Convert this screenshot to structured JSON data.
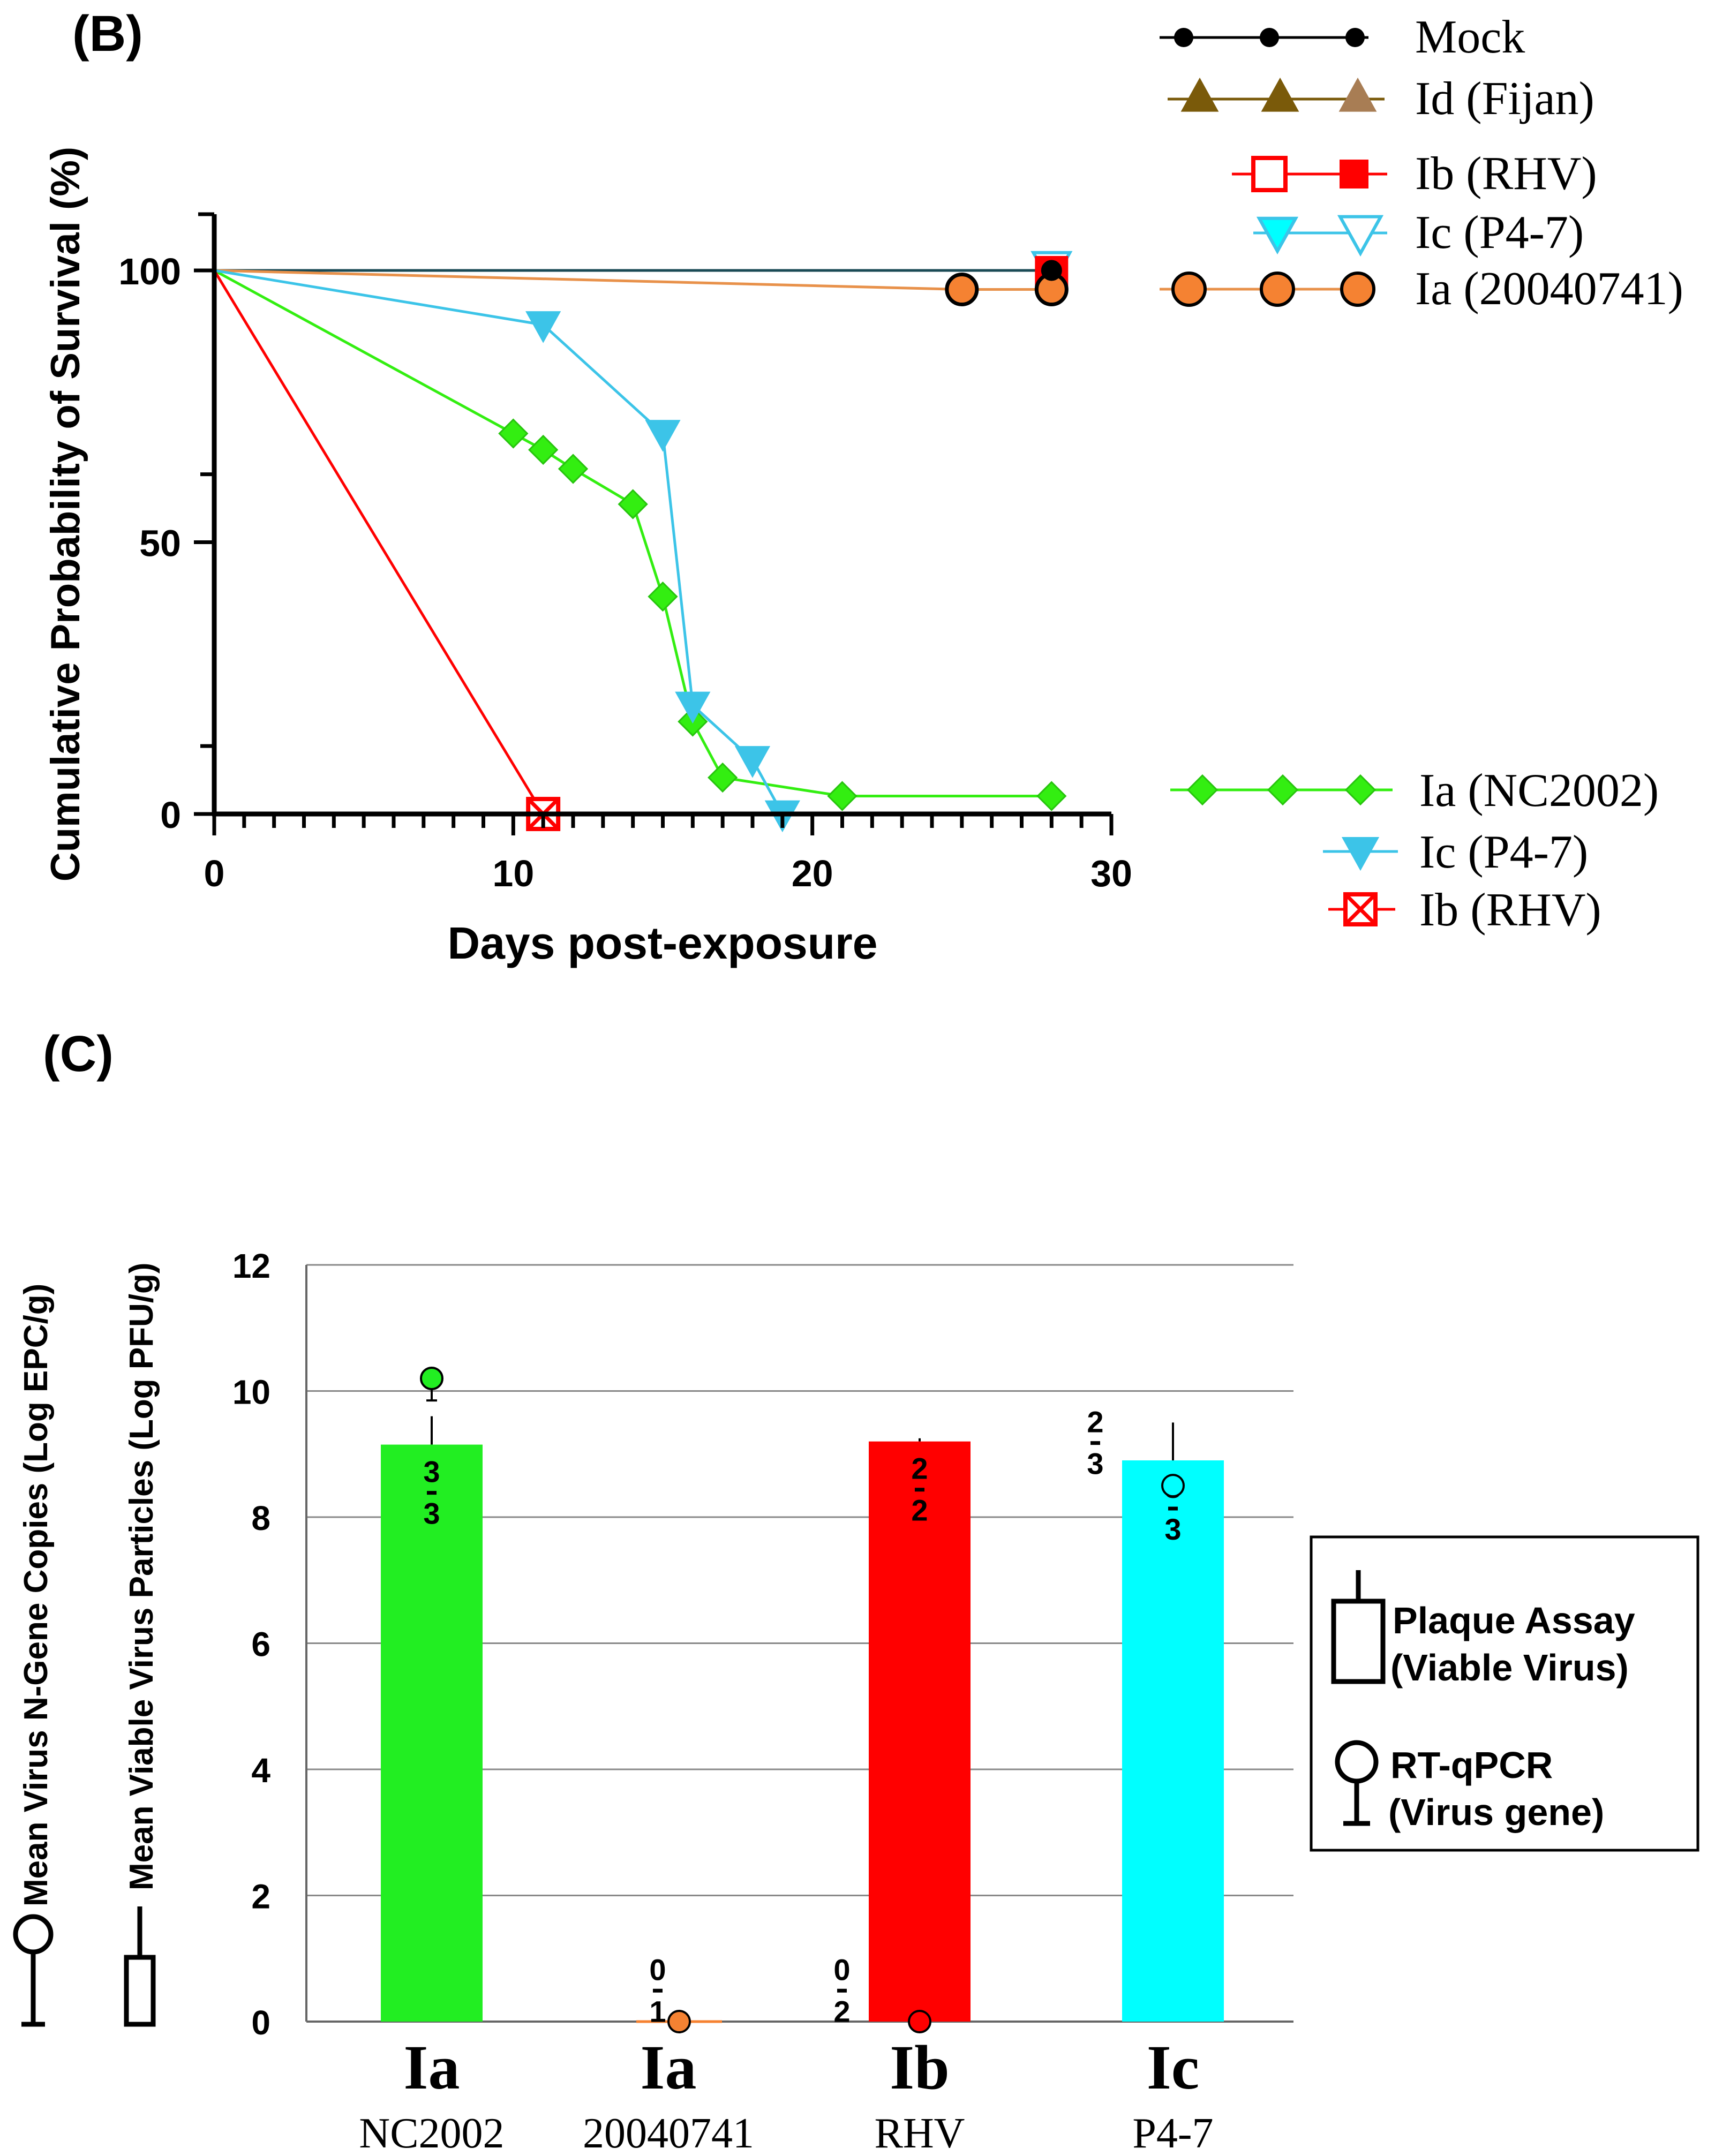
{
  "colors": {
    "mock": "#000000",
    "fijan": "#7a5a0a",
    "fijan_light": "#a87d54",
    "rhv": "#ff0000",
    "p47": "#22d3ee",
    "p47_fill": "#00ffff",
    "ia_2004": "#f58232",
    "ia_2004_line": "#e8914a",
    "nc2002": "#33ee11",
    "nc2002_bar": "#22ee22",
    "p47_line": "#3cc4e8",
    "mock_line": "#1a4a55"
  },
  "chart_data": [
    {
      "type": "line",
      "panel_label": "(B)",
      "title": "",
      "xlabel": "Days post-exposure",
      "ylabel": "Cumulative Probability of Survival (%)",
      "xlim": [
        0,
        30
      ],
      "ylim": [
        0,
        110
      ],
      "xticks": [
        0,
        10,
        20,
        30
      ],
      "xtick_labels": [
        "0",
        "10",
        "20",
        "30"
      ],
      "yticks": [
        0,
        50,
        100
      ],
      "ytick_labels": [
        "0",
        "50",
        "100"
      ],
      "series": [
        {
          "name": "Mock",
          "marker": "circle",
          "x": [
            0,
            28
          ],
          "y": [
            100,
            100
          ],
          "censored": [
            [
              28,
              100
            ]
          ]
        },
        {
          "name": "Id (Fijan)",
          "marker": "triangle",
          "x": [
            0,
            28
          ],
          "y": [
            100,
            100
          ],
          "censored": []
        },
        {
          "name": "Ib (RHV)",
          "marker": "square",
          "x": [
            0,
            28
          ],
          "y": [
            100,
            100
          ],
          "censored": [
            [
              28,
              100
            ]
          ]
        },
        {
          "name": "Ic (P4-7)",
          "marker": "triangle-down",
          "x": [
            0,
            28
          ],
          "y": [
            100,
            100
          ],
          "censored": [
            [
              28,
              100
            ]
          ]
        },
        {
          "name": "Ia (20040741)",
          "marker": "circle",
          "x": [
            0,
            25,
            28
          ],
          "y": [
            100,
            96.5,
            96.5
          ],
          "censored": [
            [
              25,
              96.5
            ],
            [
              28,
              96.5
            ]
          ]
        },
        {
          "name": "Ia (NC2002)",
          "marker": "diamond",
          "x": [
            0,
            10,
            11,
            12,
            14,
            15,
            16,
            17,
            21,
            28
          ],
          "y": [
            100,
            70,
            67,
            63.5,
            57,
            40,
            17,
            6.7,
            3.3,
            3.3
          ],
          "censored": []
        },
        {
          "name": "Ic (P4-7)",
          "marker": "triangle-down",
          "x": [
            0,
            11,
            15,
            16,
            18,
            19
          ],
          "y": [
            100,
            90,
            70,
            20,
            10,
            0
          ],
          "censored": []
        },
        {
          "name": "Ib (RHV)",
          "marker": "crossed-square",
          "x": [
            0,
            11
          ],
          "y": [
            100,
            0
          ],
          "censored": []
        }
      ],
      "legend_top": [
        "Mock",
        "Id (Fijan)",
        "Ib (RHV)",
        "Ic (P4-7)",
        "Ia (20040741)"
      ],
      "legend_bottom": [
        "Ia (NC2002)",
        "Ic (P4-7)",
        "Ib (RHV)"
      ]
    },
    {
      "type": "bar",
      "panel_label": "(C)",
      "title": "",
      "ylabel_1": "Mean Virus N-Gene Copies  (Log EPC/g)",
      "ylabel_2": "Mean Viable Virus Particles  (Log PFU/g)",
      "ylim": [
        0,
        12
      ],
      "yticks": [
        0,
        2,
        4,
        6,
        8,
        10,
        12
      ],
      "ytick_labels": [
        "0",
        "2",
        "4",
        "6",
        "8",
        "10",
        "12"
      ],
      "categories": [
        {
          "genogroup": "Ia",
          "strain": "NC2002"
        },
        {
          "genogroup": "Ia",
          "strain": "20040741"
        },
        {
          "genogroup": "Ib",
          "strain": "RHV"
        },
        {
          "genogroup": "Ic",
          "strain": "P4-7"
        }
      ],
      "plaque_assay": [
        9.15,
        0,
        9.2,
        8.9
      ],
      "plaque_error": [
        0.45,
        0,
        0.05,
        0.6
      ],
      "rt_qpcr": [
        10.2,
        0,
        0,
        8.5
      ],
      "rt_qpcr_error": [
        0.35,
        0,
        0,
        0
      ],
      "bar_fractions": [
        {
          "numerator": "3",
          "denominator": "3"
        },
        {
          "numerator": "0",
          "denominator": "1"
        },
        {
          "numerator": "2",
          "denominator": "2"
        },
        {
          "numerator": "3",
          "denominator": "3"
        }
      ],
      "qpcr_fractions": [
        null,
        null,
        {
          "numerator": "0",
          "denominator": "2"
        },
        {
          "numerator": "2",
          "denominator": "3"
        }
      ],
      "legend": [
        {
          "name": "Plaque Assay",
          "sub": "(Viable Virus)"
        },
        {
          "name": "RT-qPCR",
          "sub": "(Virus gene)"
        }
      ]
    }
  ]
}
